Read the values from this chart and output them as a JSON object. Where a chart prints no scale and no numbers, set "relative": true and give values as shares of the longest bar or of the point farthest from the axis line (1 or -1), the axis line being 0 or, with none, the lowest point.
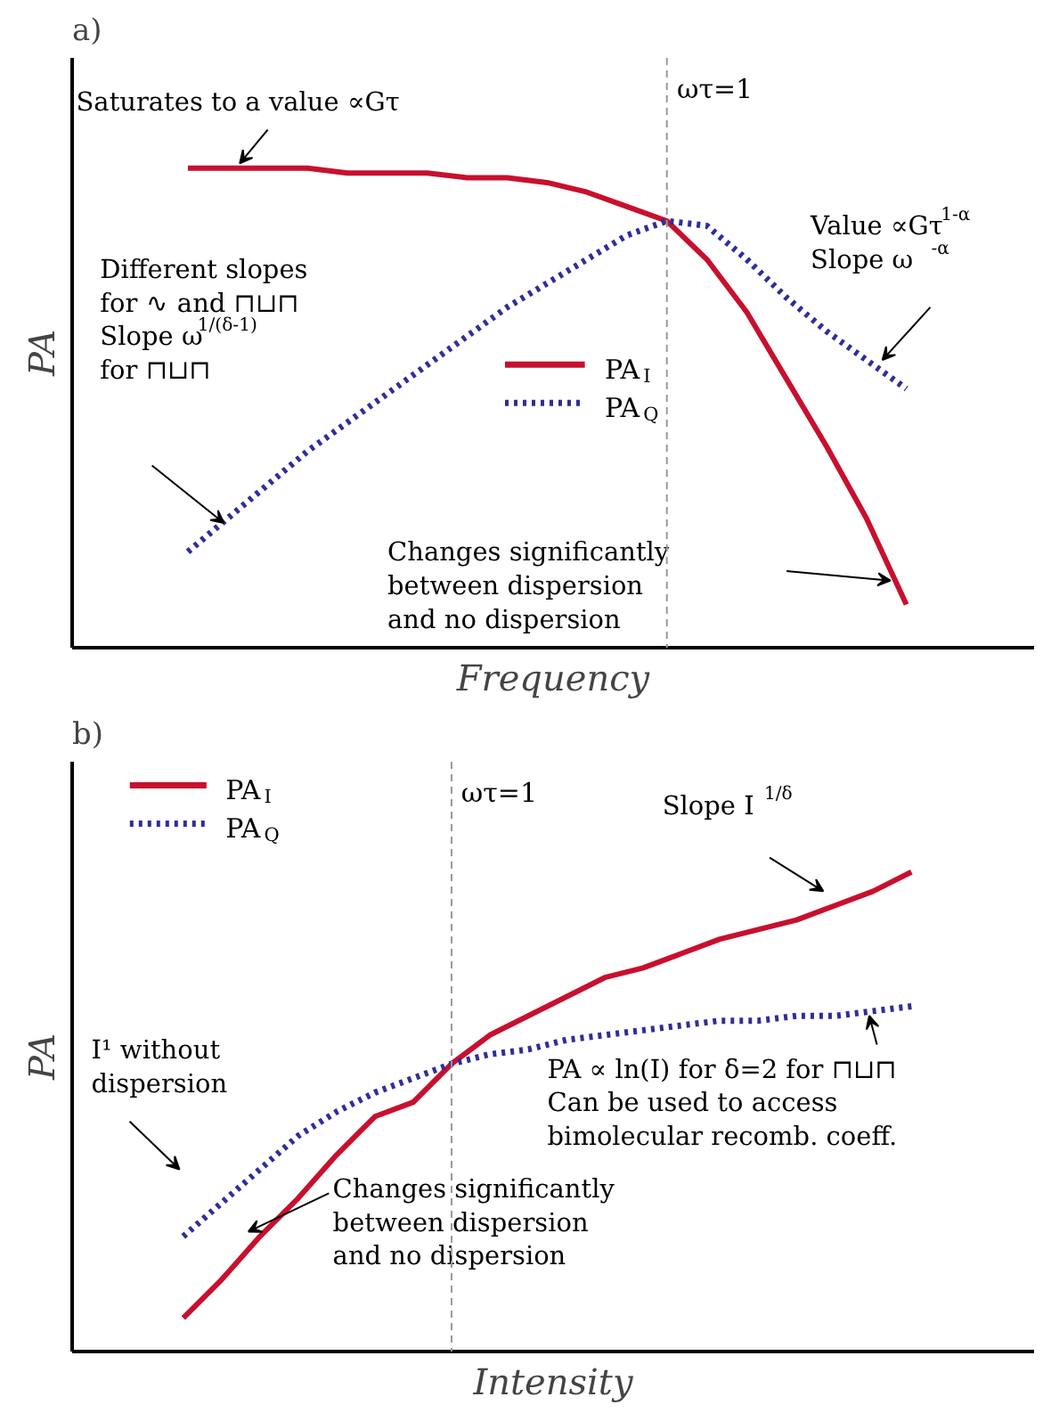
{
  "chart_data": [
    {
      "type": "line",
      "title": "a)",
      "xlabel": "Frequency",
      "ylabel": "PA",
      "relative": true,
      "legend": "center",
      "categories": [
        null,
        null,
        null,
        null,
        null,
        null,
        null,
        null,
        null,
        null,
        null,
        null,
        null,
        null,
        null,
        null,
        null,
        null,
        null
      ],
      "series": [
        {
          "name": "PA$_{I}$",
          "color": "#c8102e",
          "line_style": "solid",
          "values": [
            1.0,
            1.0,
            1.0,
            1.0,
            0.99,
            0.99,
            0.99,
            0.98,
            0.98,
            0.97,
            0.95,
            0.92,
            0.89,
            0.81,
            0.7,
            0.56,
            0.42,
            0.27,
            0.09
          ]
        },
        {
          "name": "PA$_{Q}$",
          "color": "#2e2e9a",
          "line_style": "dotted",
          "values": [
            0.2,
            0.27,
            0.34,
            0.41,
            0.47,
            0.53,
            0.59,
            0.65,
            0.71,
            0.76,
            0.81,
            0.86,
            0.89,
            0.88,
            0.81,
            0.73,
            0.66,
            0.6,
            0.54
          ]
        }
      ],
      "annotations": [
        "ωτ=1",
        "Saturates to a value ∝Gτ",
        "Different slopes\nfor ∿ and ⊓⊔⊓\nSlope ω$^{1/(δ-1)}$\nfor ⊓⊔⊓",
        "Value ∝Gτ$^{1-α}$\n   Slope ω$^{-α}$",
        "Changes significantly\nbetween dispersion\nand no dispersion"
      ]
    },
    {
      "type": "line",
      "title": "b)",
      "xlabel": "Intensity",
      "ylabel": "PA",
      "relative": true,
      "legend": "top left",
      "categories": [
        null,
        null,
        null,
        null,
        null,
        null,
        null,
        null,
        null,
        null,
        null,
        null,
        null,
        null,
        null,
        null,
        null,
        null,
        null,
        null
      ],
      "series": [
        {
          "name": "PA$_{I}$",
          "color": "#c8102e",
          "line_style": "solid",
          "values": [
            0.07,
            0.15,
            0.24,
            0.32,
            0.41,
            0.49,
            0.52,
            0.6,
            0.66,
            0.7,
            0.74,
            0.78,
            0.8,
            0.83,
            0.86,
            0.88,
            0.9,
            0.93,
            0.96,
            1.0
          ]
        },
        {
          "name": "PA$_{Q}$",
          "color": "#2e2e9a",
          "line_style": "dotted",
          "values": [
            0.24,
            0.31,
            0.38,
            0.45,
            0.5,
            0.54,
            0.57,
            0.6,
            0.62,
            0.63,
            0.65,
            0.66,
            0.67,
            0.68,
            0.69,
            0.69,
            0.7,
            0.7,
            0.71,
            0.72
          ]
        }
      ],
      "annotations": [
        "ωτ=1",
        "Slope I$^{1/δ}$",
        "I¹ without\ndispersion",
        "PA ∝ ln(I) for δ=2 for ⊓⊔⊓\nCan be used to access\nbimolecular recomb. coeff.",
        "Changes significantly\nbetween dispersion\nand no dispersion"
      ]
    }
  ]
}
